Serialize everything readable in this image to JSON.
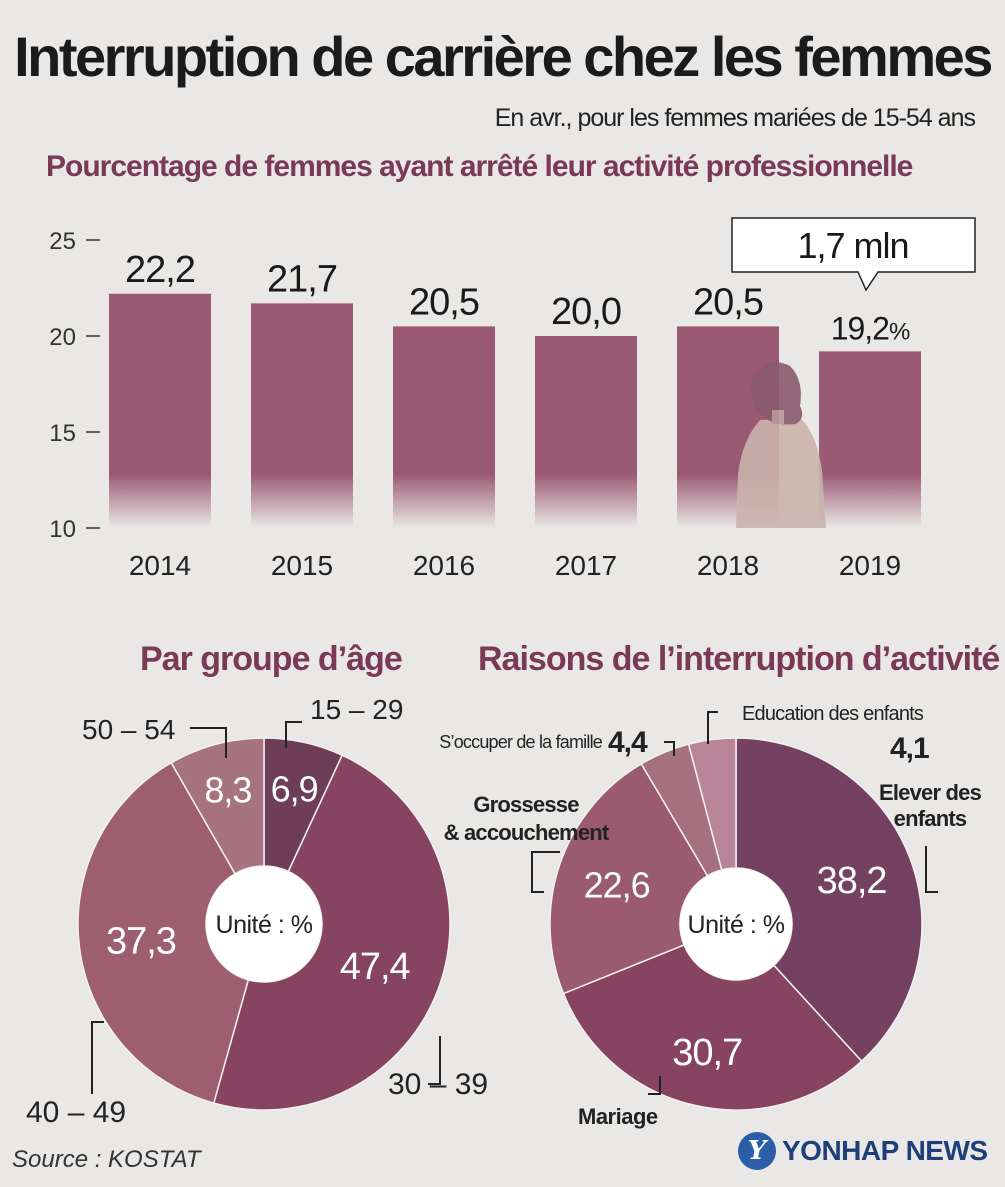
{
  "title": "Interruption de carrière chez les femmes",
  "subtitle": "En avr., pour les femmes mariées de 15-54 ans",
  "source": "Source : KOSTAT",
  "logo": {
    "mark": "Y",
    "text": "YONHAP NEWS"
  },
  "colors": {
    "bar": "#9b5a73",
    "age": [
      "#6e3d58",
      "#874460",
      "#9d5e71",
      "#a77380"
    ],
    "reason": [
      "#744260",
      "#874460",
      "#9a5a6f",
      "#a67080",
      "#b88498"
    ]
  },
  "chart_data": [
    {
      "type": "bar",
      "title": "Pourcentage de femmes ayant arrêté leur activité professionnelle",
      "categories": [
        "2014",
        "2015",
        "2016",
        "2017",
        "2018",
        "2019"
      ],
      "values": [
        22.2,
        21.7,
        20.5,
        20.0,
        20.5,
        19.2
      ],
      "value_labels": [
        "22,2",
        "21,7",
        "20,5",
        "20,0",
        "20,5",
        "19,2"
      ],
      "last_unit": "%",
      "yticks": [
        10,
        15,
        20,
        25
      ],
      "ylim": [
        10,
        25
      ],
      "annotation": "1,7 mln",
      "grid": false
    },
    {
      "type": "pie",
      "title": "Par groupe d’âge",
      "center_label": "Unité : %",
      "slices": [
        {
          "name": "15 – 29",
          "value": 6.9,
          "label": "6,9"
        },
        {
          "name": "30 – 39",
          "value": 47.4,
          "label": "47,4"
        },
        {
          "name": "40 – 49",
          "value": 37.3,
          "label": "37,3"
        },
        {
          "name": "50 – 54",
          "value": 8.3,
          "label": "8,3"
        }
      ]
    },
    {
      "type": "pie",
      "title": "Raisons de l’interruption d’activité",
      "center_label": "Unité : %",
      "slices": [
        {
          "name": "Elever des enfants",
          "value": 38.2,
          "label": "38,2"
        },
        {
          "name": "Mariage",
          "value": 30.7,
          "label": "30,7"
        },
        {
          "name": "Grossesse & accouchement",
          "value": 22.6,
          "label": "22,6"
        },
        {
          "name": "S’occuper de la famille",
          "value": 4.4,
          "label": "4,4"
        },
        {
          "name": "Education des enfants",
          "value": 4.1,
          "label": "4,1"
        }
      ]
    }
  ]
}
